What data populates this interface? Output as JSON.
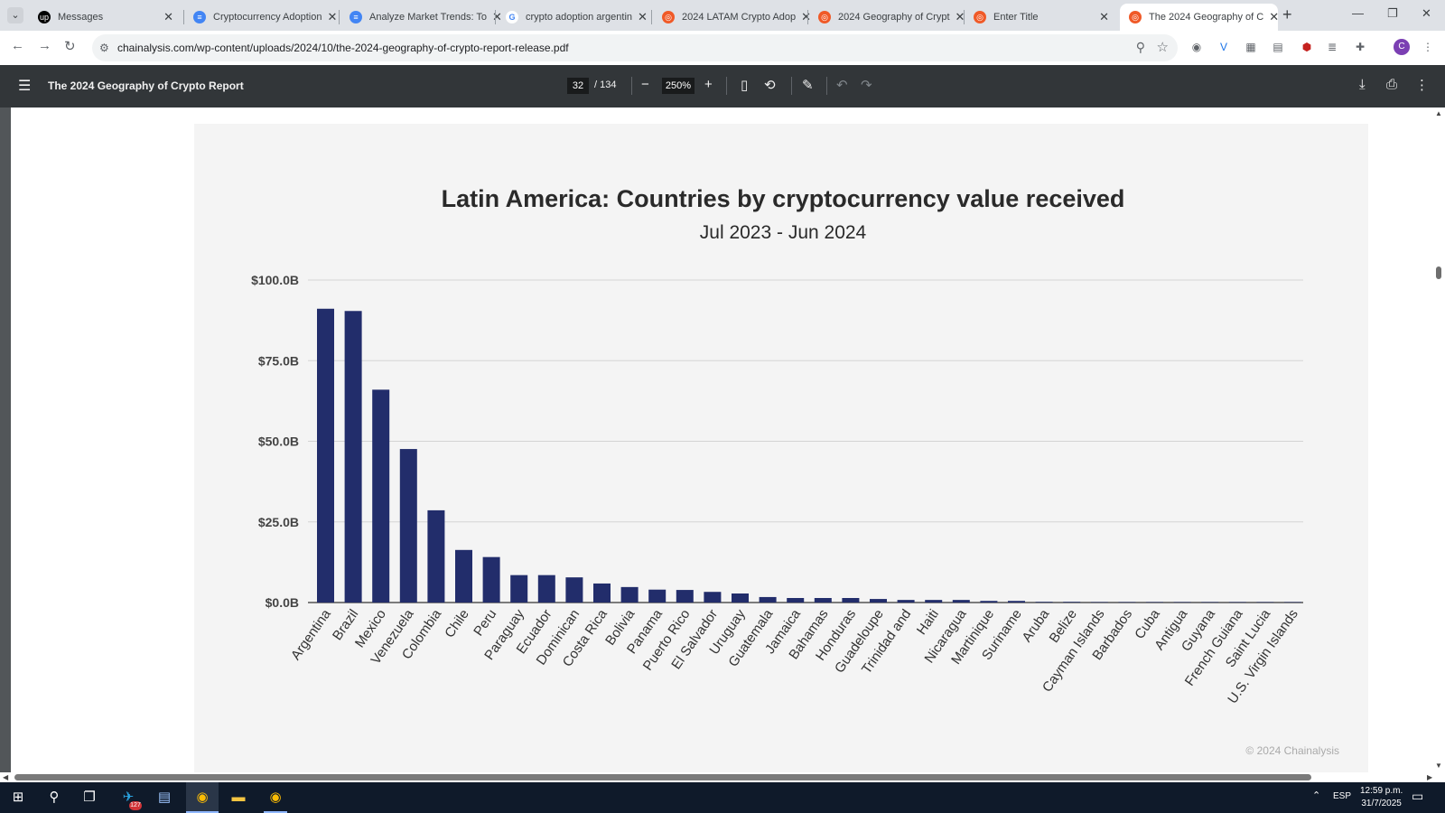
{
  "browser": {
    "tabs": [
      {
        "title": "Messages",
        "favicon": "upwork-icon",
        "fav_color": "#000000",
        "fav_glyph": "up"
      },
      {
        "title": "Cryptocurrency Adoption",
        "favicon": "docs-icon",
        "fav_color": "#4285f4",
        "fav_glyph": "≡"
      },
      {
        "title": "Analyze Market Trends: To",
        "favicon": "docs-icon",
        "fav_color": "#4285f4",
        "fav_glyph": "≡"
      },
      {
        "title": "crypto adoption argentin",
        "favicon": "google-icon",
        "fav_color": "#ffffff",
        "fav_glyph": "G"
      },
      {
        "title": "2024 LATAM Crypto Adop",
        "favicon": "chainalysis-icon",
        "fav_color": "#f05a28",
        "fav_glyph": "◎"
      },
      {
        "title": "2024 Geography of Crypt",
        "favicon": "chainalysis-icon",
        "fav_color": "#f05a28",
        "fav_glyph": "◎"
      },
      {
        "title": "Enter Title",
        "favicon": "chainalysis-icon",
        "fav_color": "#f05a28",
        "fav_glyph": "◎"
      },
      {
        "title": "The 2024 Geography of C",
        "favicon": "chainalysis-icon",
        "fav_color": "#f05a28",
        "fav_glyph": "◎",
        "active": true
      }
    ],
    "url": "chainalysis.com/wp-content/uploads/2024/10/the-2024-geography-of-crypto-report-release.pdf",
    "extension_badge": "1",
    "profile_initial": "C"
  },
  "pdf": {
    "title": "The 2024 Geography of Crypto Report",
    "page_current": "32",
    "page_total": "/ 134",
    "zoom": "250%"
  },
  "chart_data": {
    "type": "bar",
    "title": "Latin America: Countries by cryptocurrency value received",
    "subtitle": "Jul 2023 - Jun 2024",
    "xlabel": "",
    "ylabel": "",
    "ylim": [
      0,
      100
    ],
    "yticks": [
      "$0.0B",
      "$25.0B",
      "$50.0B",
      "$75.0B",
      "$100.0B"
    ],
    "ytick_values": [
      0,
      25,
      50,
      75,
      100
    ],
    "grid": true,
    "bar_color": "#222d6b",
    "categories": [
      "Argentina",
      "Brazil",
      "Mexico",
      "Venezuela",
      "Colombia",
      "Chile",
      "Peru",
      "Paraguay",
      "Ecuador",
      "Dominican",
      "Costa Rica",
      "Bolivia",
      "Panama",
      "Puerto Rico",
      "El Salvador",
      "Uruguay",
      "Guatemala",
      "Jamaica",
      "Bahamas",
      "Honduras",
      "Guadeloupe",
      "Trinidad and",
      "Haiti",
      "Nicaragua",
      "Martinique",
      "Suriname",
      "Aruba",
      "Belize",
      "Cayman Islands",
      "Barbados",
      "Cuba",
      "Antigua",
      "Guyana",
      "French Guiana",
      "Saint Lucia",
      "U.S. Virgin Islands"
    ],
    "values": [
      91.1,
      90.4,
      66.0,
      47.6,
      28.6,
      16.3,
      14.1,
      8.5,
      8.5,
      7.8,
      5.9,
      4.8,
      4.0,
      3.9,
      3.3,
      2.8,
      1.7,
      1.4,
      1.4,
      1.4,
      1.1,
      0.8,
      0.8,
      0.8,
      0.5,
      0.5,
      0.2,
      0.2,
      0.1,
      0.1,
      0.1,
      0.1,
      0.05,
      0.05,
      0.05,
      0.05
    ],
    "credit": "© 2024 Chainalysis"
  },
  "taskbar": {
    "telegram_badge": "127",
    "language": "ESP",
    "time": "12:59 p.m.",
    "date": "31/7/2025"
  }
}
